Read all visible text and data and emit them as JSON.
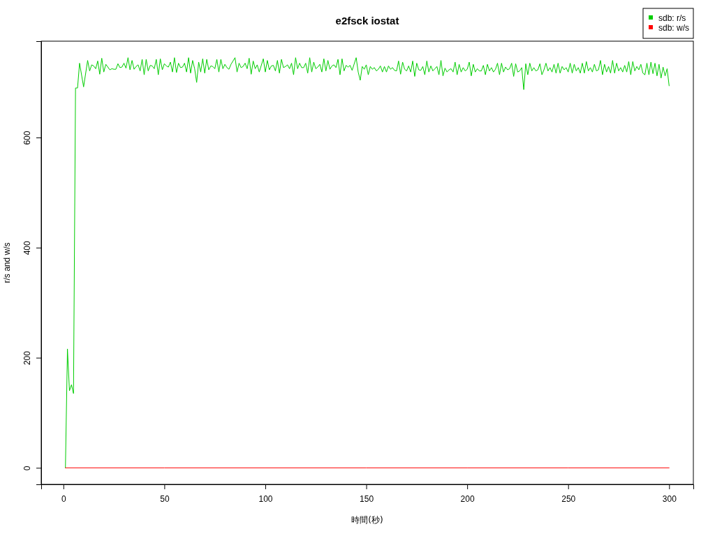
{
  "chart_data": {
    "type": "line",
    "title": "e2fsck iostat",
    "xlabel": "時間(秒)",
    "ylabel": "r/s and w/s",
    "xlim": [
      -11,
      312
    ],
    "ylim": [
      -30,
      775
    ],
    "xticks": [
      0,
      50,
      100,
      150,
      200,
      250,
      300
    ],
    "yticks": [
      0,
      200,
      400,
      600
    ],
    "legend": "top right",
    "series": [
      {
        "name": "sdb: r/s",
        "color": "#00cd00",
        "x": [
          1,
          2,
          3,
          4,
          5,
          6,
          7,
          8,
          10,
          12,
          13,
          14,
          15,
          16,
          17,
          18,
          19,
          20,
          21,
          23,
          24,
          25,
          26,
          27,
          28,
          29,
          30,
          31,
          32,
          33,
          34,
          35,
          36,
          37,
          38,
          39,
          40,
          41,
          42,
          43,
          44,
          45,
          46,
          47,
          48,
          49,
          50,
          51,
          52,
          53,
          54,
          55,
          56,
          57,
          58,
          59,
          60,
          61,
          62,
          63,
          64,
          65,
          66,
          67,
          68,
          69,
          70,
          71,
          72,
          73,
          74,
          75,
          76,
          77,
          78,
          79,
          80,
          81,
          82,
          83,
          85,
          86,
          87,
          88,
          89,
          90,
          91,
          92,
          93,
          94,
          95,
          96,
          97,
          99,
          100,
          101,
          102,
          103,
          104,
          105,
          106,
          107,
          108,
          109,
          110,
          111,
          112,
          113,
          114,
          115,
          116,
          117,
          118,
          119,
          120,
          121,
          122,
          123,
          124,
          125,
          126,
          127,
          128,
          129,
          130,
          131,
          132,
          133,
          134,
          135,
          136,
          137,
          138,
          139,
          140,
          141,
          142,
          143,
          145,
          146,
          147,
          148,
          149,
          150,
          151,
          152,
          153,
          154,
          155,
          156,
          157,
          158,
          159,
          160,
          161,
          162,
          163,
          164,
          165,
          166,
          167,
          168,
          169,
          170,
          171,
          172,
          173,
          174,
          175,
          176,
          177,
          178,
          179,
          180,
          181,
          182,
          183,
          184,
          185,
          186,
          187,
          188,
          189,
          190,
          191,
          192,
          193,
          194,
          195,
          196,
          197,
          198,
          199,
          200,
          201,
          202,
          203,
          204,
          205,
          206,
          207,
          208,
          209,
          210,
          211,
          212,
          213,
          214,
          215,
          216,
          217,
          218,
          219,
          220,
          221,
          222,
          223,
          224,
          225,
          226,
          227,
          228,
          229,
          230,
          231,
          232,
          233,
          234,
          235,
          236,
          237,
          238,
          239,
          240,
          241,
          242,
          243,
          244,
          245,
          246,
          247,
          248,
          249,
          250,
          251,
          252,
          253,
          254,
          255,
          256,
          257,
          258,
          259,
          260,
          261,
          262,
          263,
          264,
          265,
          266,
          267,
          268,
          269,
          270,
          271,
          272,
          273,
          274,
          275,
          276,
          277,
          278,
          279,
          280,
          281,
          282,
          283,
          284,
          285,
          286,
          287,
          288,
          289,
          290,
          291,
          292,
          293,
          294,
          295,
          296,
          297,
          298,
          299,
          300
        ],
        "values": [
          0,
          216,
          140,
          151,
          135,
          690,
          690,
          735,
          692,
          740,
          721,
          732,
          730,
          725,
          739,
          715,
          744,
          719,
          733,
          723,
          725,
          724,
          724,
          734,
          727,
          728,
          735,
          726,
          745,
          723,
          740,
          724,
          729,
          732,
          721,
          742,
          714,
          742,
          721,
          731,
          730,
          725,
          742,
          714,
          743,
          723,
          734,
          730,
          728,
          737,
          719,
          745,
          718,
          735,
          727,
          728,
          735,
          719,
          745,
          717,
          740,
          725,
          700,
          737,
          719,
          743,
          717,
          742,
          723,
          730,
          729,
          725,
          742,
          719,
          742,
          725,
          733,
          727,
          724,
          733,
          745,
          719,
          735,
          727,
          729,
          735,
          725,
          744,
          715,
          739,
          725,
          732,
          719,
          743,
          719,
          740,
          723,
          730,
          731,
          721,
          740,
          717,
          742,
          727,
          729,
          732,
          725,
          735,
          714,
          745,
          725,
          735,
          727,
          727,
          735,
          717,
          745,
          719,
          737,
          725,
          728,
          733,
          719,
          743,
          721,
          740,
          724,
          730,
          732,
          727,
          742,
          714,
          743,
          721,
          731,
          728,
          731,
          722,
          745,
          719,
          704,
          729,
          724,
          732,
          714,
          729,
          724,
          727,
          721,
          724,
          730,
          719,
          729,
          719,
          730,
          724,
          727,
          722,
          721,
          739,
          715,
          737,
          724,
          721,
          730,
          719,
          739,
          711,
          735,
          723,
          722,
          729,
          714,
          739,
          719,
          730,
          721,
          725,
          729,
          714,
          740,
          712,
          726,
          719,
          723,
          725,
          719,
          737,
          714,
          733,
          719,
          727,
          721,
          724,
          737,
          712,
          733,
          719,
          725,
          721,
          721,
          731,
          714,
          733,
          721,
          727,
          719,
          724,
          735,
          714,
          735,
          719,
          728,
          723,
          725,
          735,
          711,
          734,
          719,
          721,
          727,
          687,
          734,
          714,
          735,
          721,
          727,
          721,
          723,
          734,
          714,
          723,
          735,
          721,
          727,
          719,
          733,
          717,
          735,
          717,
          729,
          723,
          727,
          719,
          735,
          717,
          733,
          721,
          727,
          717,
          735,
          717,
          738,
          721,
          727,
          719,
          733,
          721,
          723,
          740,
          714,
          733,
          719,
          729,
          717,
          740,
          717,
          735,
          721,
          727,
          719,
          731,
          719,
          738,
          714,
          738,
          721,
          729,
          723,
          733,
          717,
          714,
          735,
          714,
          737,
          716,
          735,
          712,
          733,
          708,
          728,
          712,
          725,
          694
        ]
      },
      {
        "name": "sdb: w/s",
        "color": "#ff0000",
        "x": [
          1,
          50,
          100,
          150,
          200,
          250,
          300
        ],
        "values": [
          0,
          0,
          0,
          0,
          0,
          0,
          0
        ]
      }
    ]
  }
}
